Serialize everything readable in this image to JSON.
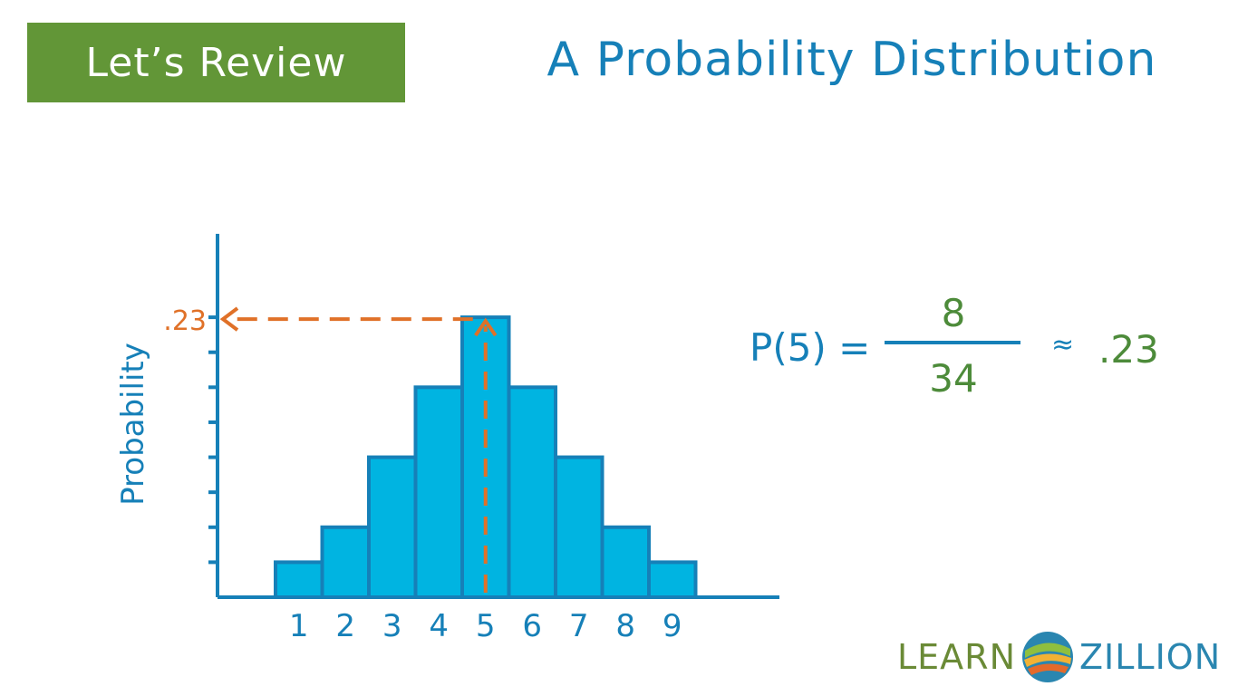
{
  "header": {
    "badge_label": "Let’s Review",
    "title": "A Probability Distribution"
  },
  "colors": {
    "badge_green": "#629637",
    "title_blue": "#1680b8",
    "bar_fill": "#00b4e1",
    "bar_stroke": "#1680b8",
    "annotation_orange": "#e07128",
    "fraction_green": "#4d8b3a"
  },
  "chart_data": {
    "type": "bar",
    "categories": [
      "1",
      "2",
      "3",
      "4",
      "5",
      "6",
      "7",
      "8",
      "9"
    ],
    "values": [
      1,
      2,
      4,
      6,
      8,
      6,
      4,
      2,
      1
    ],
    "ylabel": "Probability",
    "xlabel": "",
    "ylim": [
      0,
      8.65
    ],
    "y_tick_count": 8,
    "highlight": {
      "category": "5",
      "label": ".23"
    }
  },
  "equation": {
    "lhs": "P(5) =",
    "numerator": "8",
    "denominator": "34",
    "approx_symbol": "≈",
    "result": ".23"
  },
  "logo": {
    "learn": "LEARN",
    "zillion": "ZILLION"
  }
}
